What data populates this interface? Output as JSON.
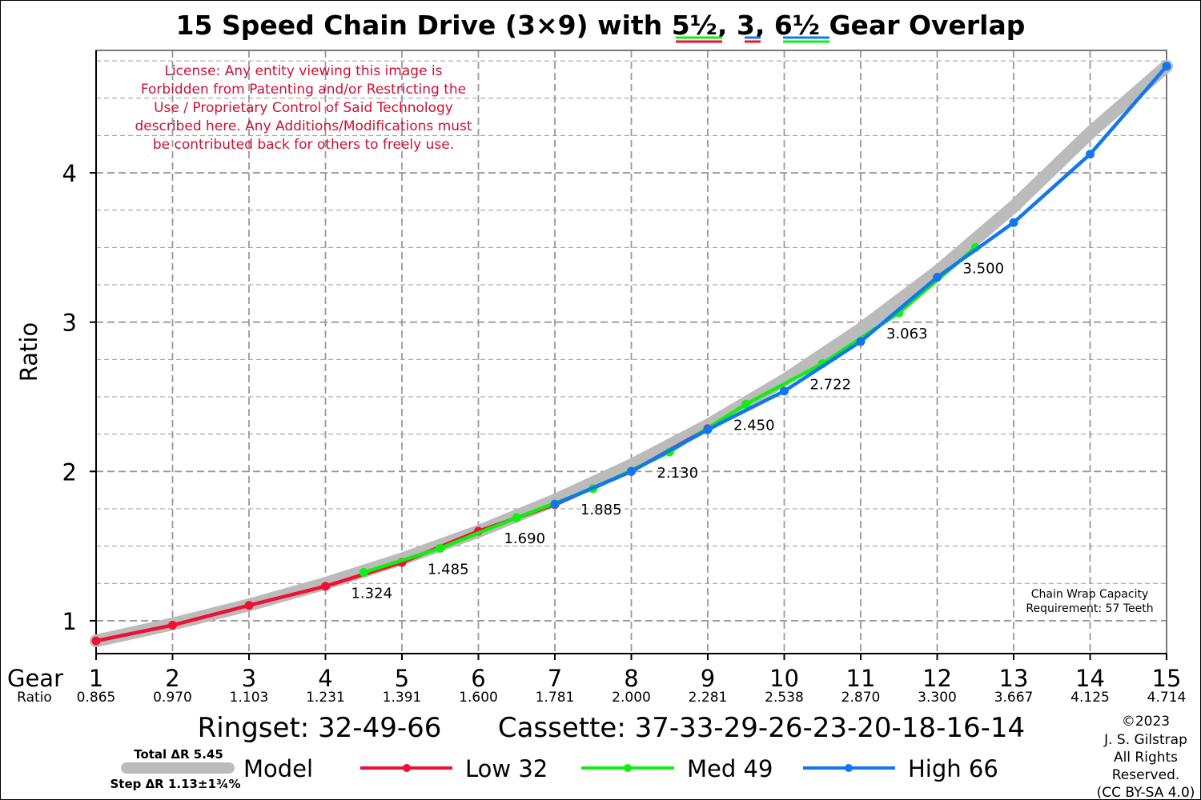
{
  "title": {
    "prefix": "15 Speed Chain Drive (3×9) with ",
    "g1": "5½",
    "sep1": ", ",
    "g2": "3",
    "sep2": ", ",
    "g3": "6½",
    "suffix": " Gear Overlap"
  },
  "license_lines": [
    "License: Any entity viewing this image is",
    "Forbidden from Patenting and/or Restricting the",
    "Use / Proprietary Control of Said Technology",
    "described here. Any Additions/Modifications must",
    "be contributed back for others to freely use."
  ],
  "chain_wrap_lines": [
    "Chain Wrap Capacity",
    "Requirement: 57 Teeth"
  ],
  "x_axis_name": "Gear",
  "ratio_row_name": "Ratio",
  "gear_ratios": [
    "0.865",
    "0.970",
    "1.103",
    "1.231",
    "1.391",
    "1.600",
    "1.781",
    "2.000",
    "2.281",
    "2.538",
    "2.870",
    "3.300",
    "3.667",
    "4.125",
    "4.714"
  ],
  "ringset": "Ringset: 32-49-66",
  "cassette": "Cassette: 37-33-29-26-23-20-18-16-14",
  "total_dr": "Total ΔR 5.45",
  "step_dr": "Step ΔR 1.13±1¾%",
  "copyright_lines": [
    "©2023",
    "J. S. Gilstrap",
    "All Rights",
    "Reserved.",
    "(CC BY-SA 4.0)"
  ],
  "colors": {
    "low": "#ee1133",
    "med": "#11ee11",
    "high": "#1177ee",
    "model": "#bbbbbb",
    "license": "#cc1133",
    "grid": "#999999"
  },
  "chart_data": {
    "type": "line",
    "title": "15 Speed Chain Drive (3×9) with 5½, 3, 6½ Gear Overlap",
    "xlabel": "Gear",
    "ylabel": "Ratio",
    "xlim": [
      1,
      15
    ],
    "ylim": [
      0.78,
      4.82
    ],
    "x_ticks": [
      1,
      2,
      3,
      4,
      5,
      6,
      7,
      8,
      9,
      10,
      11,
      12,
      13,
      14,
      15
    ],
    "y_ticks": [
      1,
      2,
      3,
      4
    ],
    "grid": true,
    "legend_position": "bottom",
    "series": [
      {
        "name": "Model",
        "style": "model",
        "x": [
          1,
          2,
          3,
          4,
          5,
          6,
          7,
          8,
          9,
          10,
          11,
          12,
          13,
          14,
          15
        ],
        "y": [
          0.865,
          0.978,
          1.106,
          1.25,
          1.414,
          1.598,
          1.807,
          2.043,
          2.31,
          2.612,
          2.953,
          3.338,
          3.774,
          4.268,
          4.714
        ]
      },
      {
        "name": "Low 32",
        "style": "low",
        "x": [
          1,
          2,
          3,
          4,
          5,
          6,
          7,
          8,
          9
        ],
        "y": [
          0.865,
          0.97,
          1.103,
          1.231,
          1.391,
          1.6,
          1.778,
          2.0,
          2.286
        ]
      },
      {
        "name": "Med 49",
        "style": "med",
        "x": [
          4.5,
          5.5,
          6.5,
          7.5,
          8.5,
          9.5,
          10.5,
          11.5,
          12.5
        ],
        "y": [
          1.324,
          1.485,
          1.69,
          1.885,
          2.13,
          2.45,
          2.722,
          3.063,
          3.5
        ]
      },
      {
        "name": "High 66",
        "style": "high",
        "x": [
          7,
          8,
          9,
          10,
          11,
          12,
          13,
          14,
          15
        ],
        "y": [
          1.781,
          2.0,
          2.281,
          2.538,
          2.87,
          3.3,
          3.667,
          4.125,
          4.714
        ]
      }
    ],
    "point_labels": [
      {
        "x": 4.5,
        "y": 1.324,
        "text": "1.324"
      },
      {
        "x": 5.5,
        "y": 1.485,
        "text": "1.485"
      },
      {
        "x": 6.5,
        "y": 1.69,
        "text": "1.690"
      },
      {
        "x": 7.5,
        "y": 1.885,
        "text": "1.885"
      },
      {
        "x": 8.5,
        "y": 2.13,
        "text": "2.130"
      },
      {
        "x": 9.5,
        "y": 2.45,
        "text": "2.450"
      },
      {
        "x": 10.5,
        "y": 2.722,
        "text": "2.722"
      },
      {
        "x": 11.5,
        "y": 3.063,
        "text": "3.063"
      },
      {
        "x": 12.5,
        "y": 3.5,
        "text": "3.500"
      }
    ]
  }
}
